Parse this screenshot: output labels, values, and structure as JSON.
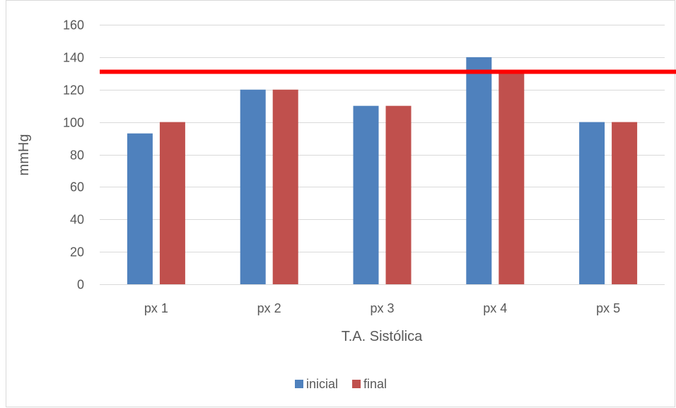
{
  "chart_data": {
    "type": "bar",
    "categories": [
      "px 1",
      "px 2",
      "px 3",
      "px 4",
      "px 5"
    ],
    "series": [
      {
        "name": "inicial",
        "color": "#4F81BD",
        "values": [
          93,
          120,
          110,
          140,
          100
        ]
      },
      {
        "name": "final",
        "color": "#C0504D",
        "values": [
          100,
          120,
          110,
          130,
          100
        ]
      }
    ],
    "xlabel": "T.A. Sistólica",
    "ylabel": "mmHg",
    "ylim": [
      0,
      160
    ],
    "yticks": [
      0,
      20,
      40,
      60,
      80,
      100,
      120,
      140,
      160
    ],
    "grid": true,
    "legend_position": "bottom",
    "reference_line": {
      "y": 131,
      "color": "#FF0000"
    }
  }
}
